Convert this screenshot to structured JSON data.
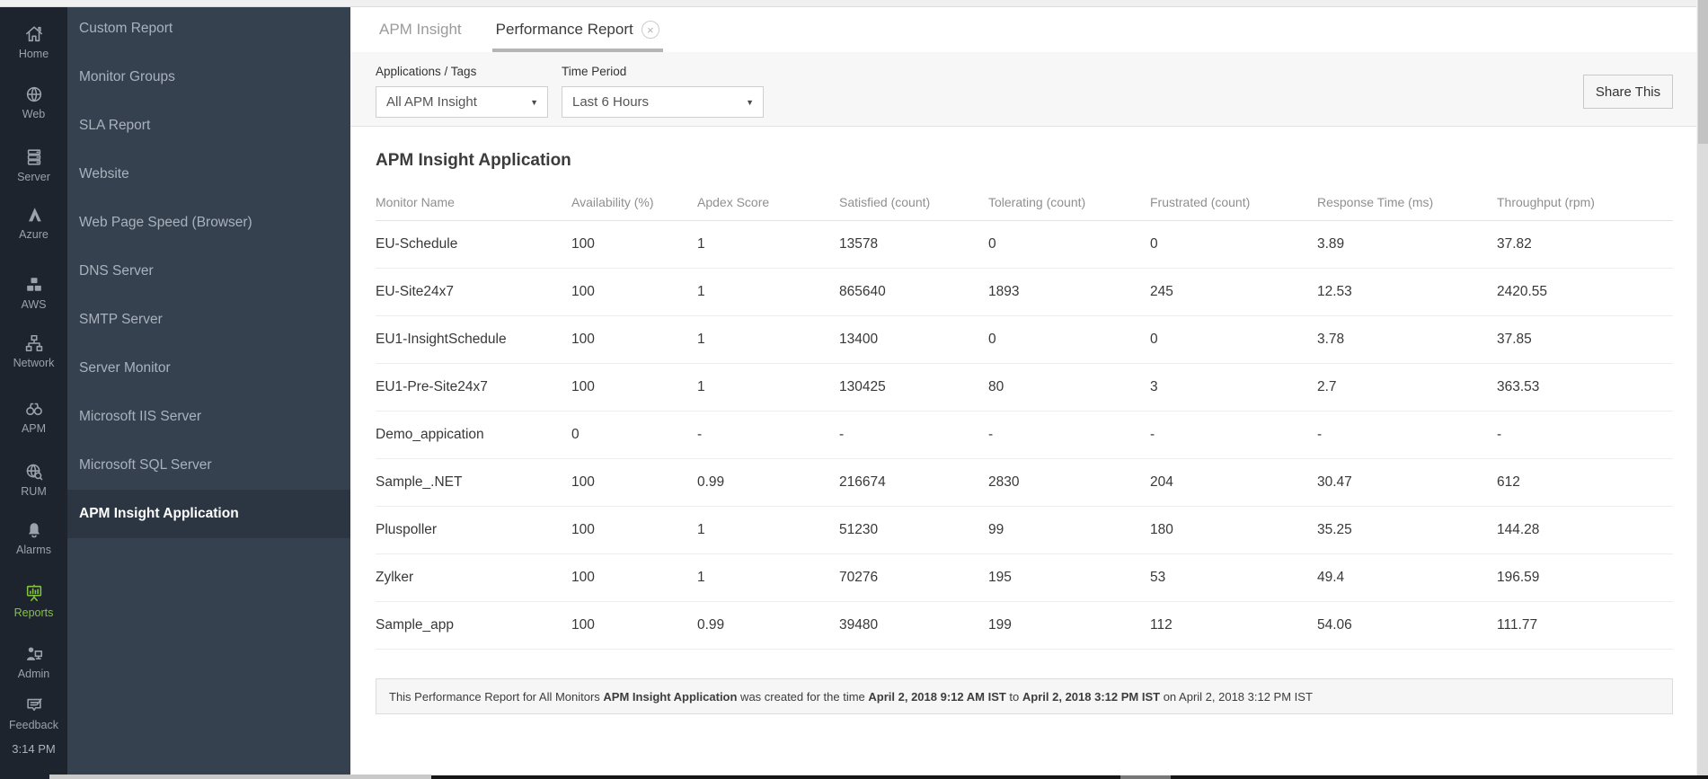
{
  "colors": {
    "rail_bg": "#1d242e",
    "sidebar_bg": "#36414f",
    "sidebar_active_bg": "#2c3642",
    "accent_green": "#84c340",
    "tab_underline": "#b5b5b5",
    "filterbar_bg": "#f7f7f7"
  },
  "rail": {
    "items": [
      {
        "label": "Home",
        "icon": "home-icon",
        "active": false
      },
      {
        "label": "Web",
        "icon": "web-icon",
        "active": false
      },
      {
        "label": "Server",
        "icon": "server-icon",
        "active": false
      },
      {
        "label": "Azure",
        "icon": "azure-icon",
        "active": false
      },
      {
        "label": "AWS",
        "icon": "aws-icon",
        "active": false
      },
      {
        "label": "Network",
        "icon": "network-icon",
        "active": false
      },
      {
        "label": "APM",
        "icon": "apm-icon",
        "active": false
      },
      {
        "label": "RUM",
        "icon": "rum-icon",
        "active": false
      },
      {
        "label": "Alarms",
        "icon": "alarms-icon",
        "active": false
      },
      {
        "label": "Reports",
        "icon": "reports-icon",
        "active": true
      },
      {
        "label": "Admin",
        "icon": "admin-icon",
        "active": false
      },
      {
        "label": "Feedback",
        "icon": "feedback-icon",
        "active": false
      }
    ],
    "time": "3:14 PM"
  },
  "sidebar": {
    "items": [
      "Custom Report",
      "Monitor Groups",
      "SLA Report",
      "Website",
      "Web Page Speed (Browser)",
      "DNS Server",
      "SMTP Server",
      "Server Monitor",
      "Microsoft IIS Server",
      "Microsoft SQL Server",
      "APM Insight Application"
    ],
    "active_index": 10
  },
  "tabs": [
    {
      "label": "APM Insight",
      "active": false,
      "closable": false
    },
    {
      "label": "Performance Report",
      "active": true,
      "closable": true
    }
  ],
  "filters": {
    "app_label": "Applications / Tags",
    "app_value": "All APM Insight",
    "period_label": "Time Period",
    "period_value": "Last 6 Hours",
    "share_label": "Share This"
  },
  "report": {
    "title": "APM Insight Application",
    "columns": [
      "Monitor Name",
      "Availability (%)",
      "Apdex Score",
      "Satisfied (count)",
      "Tolerating (count)",
      "Frustrated (count)",
      "Response Time (ms)",
      "Throughput (rpm)"
    ],
    "rows": [
      [
        "EU-Schedule",
        "100",
        "1",
        "13578",
        "0",
        "0",
        "3.89",
        "37.82"
      ],
      [
        "EU-Site24x7",
        "100",
        "1",
        "865640",
        "1893",
        "245",
        "12.53",
        "2420.55"
      ],
      [
        "EU1-InsightSchedule",
        "100",
        "1",
        "13400",
        "0",
        "0",
        "3.78",
        "37.85"
      ],
      [
        "EU1-Pre-Site24x7",
        "100",
        "1",
        "130425",
        "80",
        "3",
        "2.7",
        "363.53"
      ],
      [
        "Demo_appication",
        "0",
        "-",
        "-",
        "-",
        "-",
        "-",
        "-"
      ],
      [
        "Sample_.NET",
        "100",
        "0.99",
        "216674",
        "2830",
        "204",
        "30.47",
        "612"
      ],
      [
        "Pluspoller",
        "100",
        "1",
        "51230",
        "99",
        "180",
        "35.25",
        "144.28"
      ],
      [
        "Zylker",
        "100",
        "1",
        "70276",
        "195",
        "53",
        "49.4",
        "196.59"
      ],
      [
        "Sample_app",
        "100",
        "0.99",
        "39480",
        "199",
        "112",
        "54.06",
        "111.77"
      ]
    ],
    "footer": {
      "prefix": "This Performance Report for All Monitors ",
      "app_bold": "APM Insight Application",
      "mid": " was created for the time ",
      "from_bold": "April 2, 2018 9:12 AM IST",
      "to_word": " to ",
      "to_bold": "April 2, 2018 3:12 PM IST",
      "suffix": " on April 2, 2018 3:12 PM IST"
    }
  }
}
